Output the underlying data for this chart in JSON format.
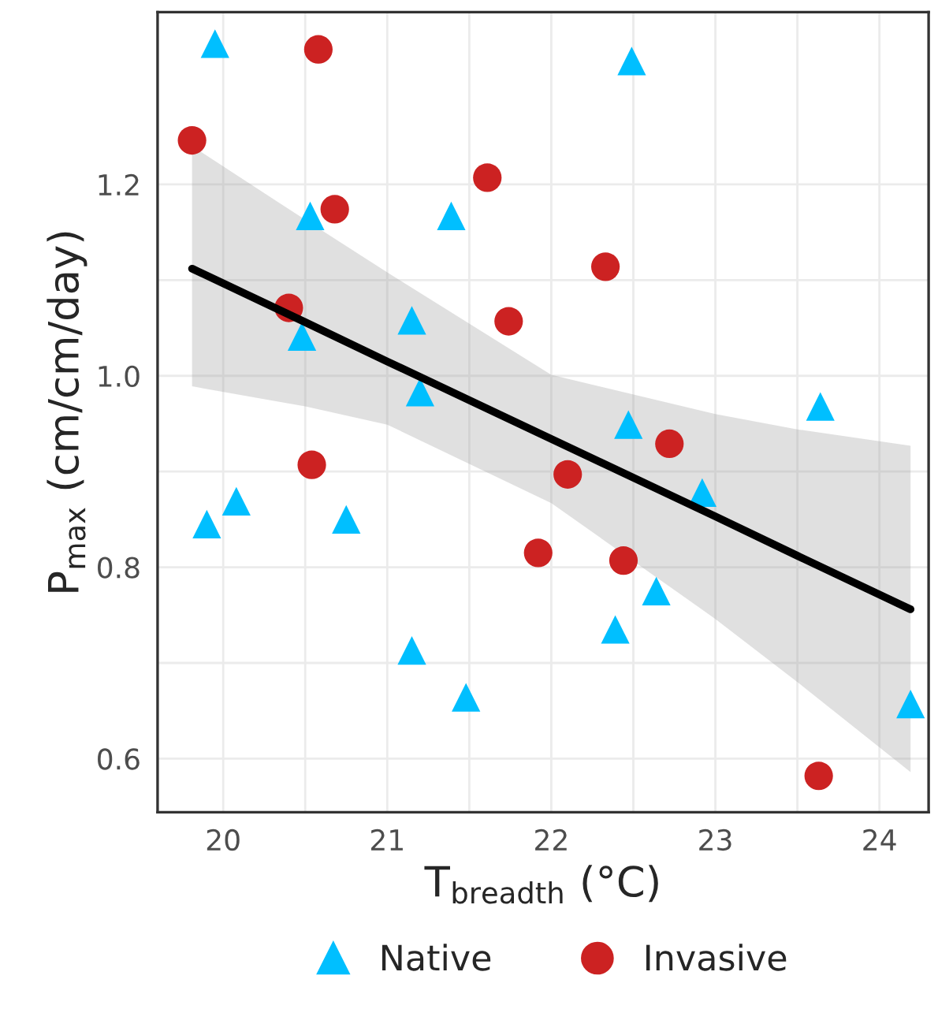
{
  "chart_data": {
    "type": "scatter",
    "xlabel": "T$_{breadth}$ (°C)",
    "ylabel": "P$_{max}$ (cm/cm/day)",
    "xlim": [
      19.6,
      24.3
    ],
    "ylim": [
      0.544,
      1.38
    ],
    "xticks": [
      20,
      21,
      22,
      23,
      24
    ],
    "yticks": [
      0.6,
      0.8,
      {
        "value": 1.0,
        "label": "1.0"
      },
      1.2
    ],
    "grid": true,
    "legend": "bottom",
    "series": [
      {
        "name": "Native",
        "marker": "triangle",
        "color": "#00bfff",
        "x": [
          19.95,
          20.53,
          21.39,
          21.15,
          20.48,
          21.2,
          20.08,
          19.9,
          20.75,
          21.15,
          21.48,
          22.49,
          22.47,
          23.64,
          22.92,
          22.64,
          22.39,
          24.19
        ],
        "values": [
          1.347,
          1.167,
          1.167,
          1.058,
          1.041,
          0.983,
          0.869,
          0.845,
          0.85,
          0.713,
          0.664,
          1.329,
          0.949,
          0.968,
          0.878,
          0.775,
          0.735,
          0.657
        ]
      },
      {
        "name": "Invasive",
        "marker": "circle",
        "color": "#cc2222",
        "x": [
          20.58,
          19.81,
          21.61,
          20.68,
          21.74,
          20.4,
          20.54,
          22.33,
          22.1,
          22.72,
          21.92,
          22.44,
          23.63
        ],
        "values": [
          1.341,
          1.246,
          1.207,
          1.174,
          1.057,
          1.071,
          0.907,
          1.114,
          0.897,
          0.929,
          0.815,
          0.807,
          0.582
        ]
      },
      {
        "type": "line",
        "color": "#000000",
        "x": [
          19.81,
          20.5,
          21,
          22,
          23,
          23.5,
          24.19
        ],
        "values": [
          1.112,
          1.056,
          1.015,
          0.934,
          0.853,
          0.812,
          0.756
        ],
        "lower": [
          0.989,
          0.968,
          0.949,
          0.867,
          0.746,
          0.68,
          0.586
        ],
        "upper": [
          1.24,
          1.163,
          1.108,
          1.001,
          0.96,
          0.944,
          0.927
        ]
      }
    ]
  }
}
